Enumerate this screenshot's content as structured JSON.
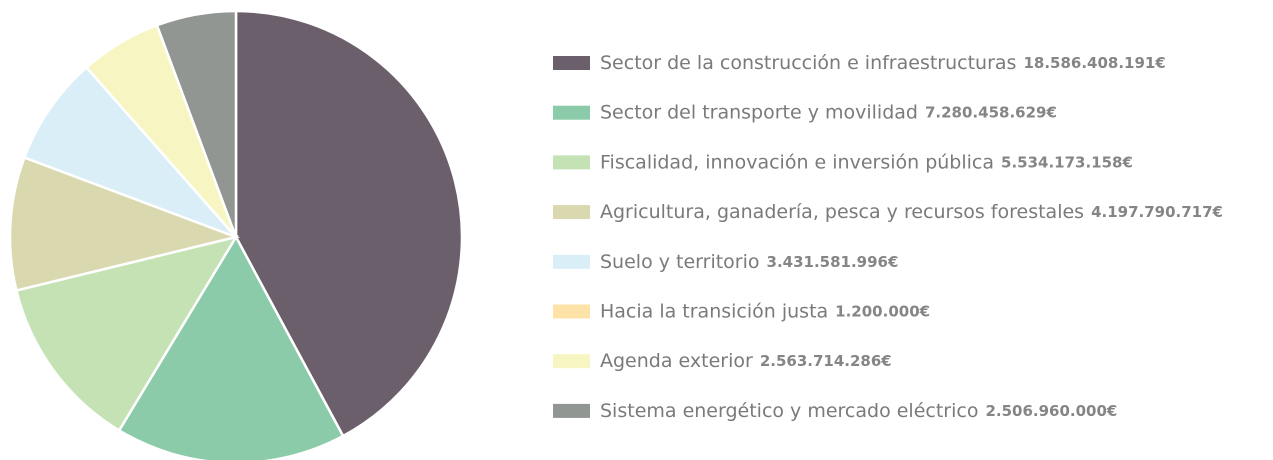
{
  "chart_data": {
    "type": "pie",
    "categories": [
      "Sector de la construcción e infraestructuras",
      "Sector del transporte y movilidad",
      "Fiscalidad, innovación e inversión pública",
      "Agricultura, ganadería, pesca y recursos forestales",
      "Suelo y territorio",
      "Hacia la transición justa",
      "Agenda exterior",
      "Sistema energético y mercado eléctrico"
    ],
    "values": [
      18586408191,
      7280458629,
      5534173158,
      4197790717,
      3431581996,
      1200000,
      2563714286,
      2506960000
    ],
    "value_labels": [
      "18.586.408.191€",
      "7.280.458.629€",
      "5.534.173.158€",
      "4.197.790.717€",
      "3.431.581.996€",
      "1.200.000€",
      "2.563.714.286€",
      "2.506.960.000€"
    ],
    "colors": [
      "#6b5f6c",
      "#8ccbaa",
      "#c5e2b5",
      "#d9d8ae",
      "#d9eef7",
      "#fde3a7",
      "#f7f6c2",
      "#919693"
    ]
  }
}
